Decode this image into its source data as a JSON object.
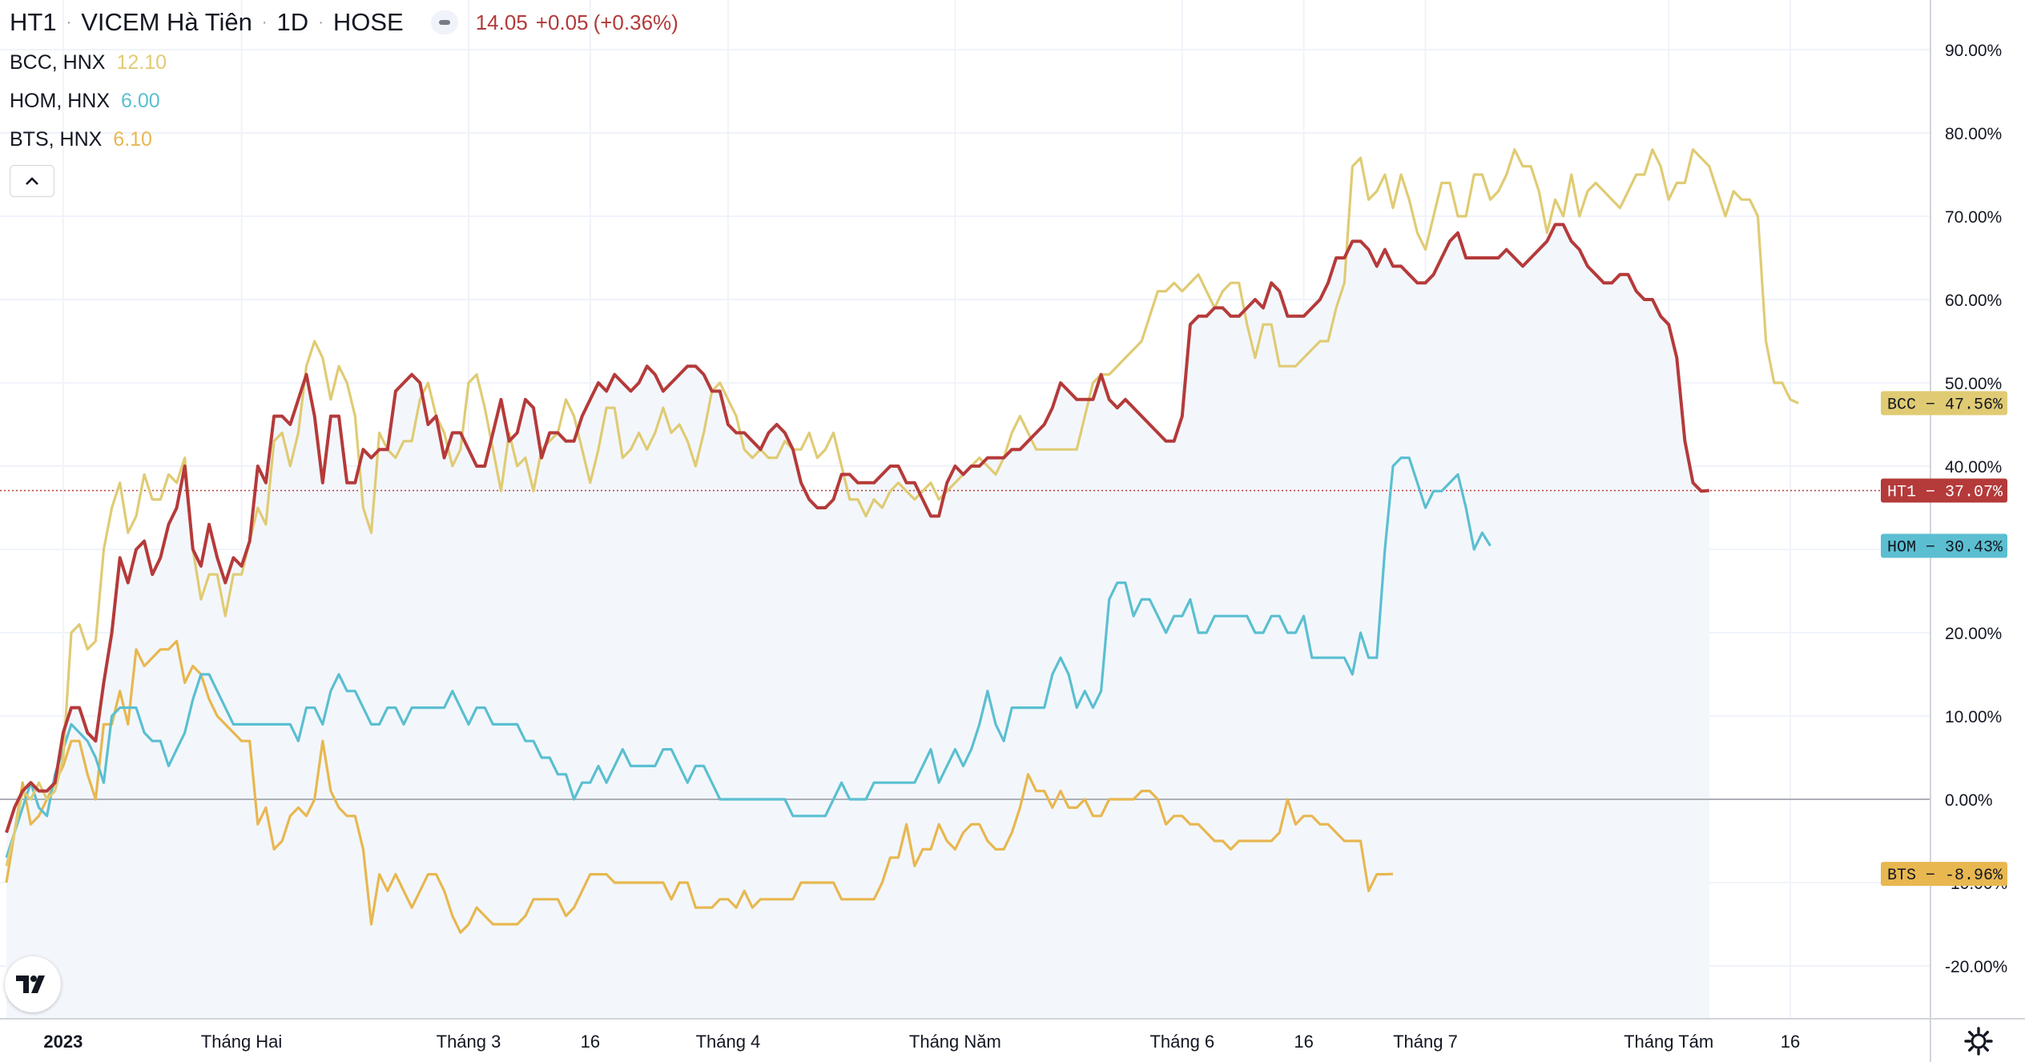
{
  "header": {
    "symbol": "HT1",
    "name": "VICEM Hà Tiên",
    "interval": "1D",
    "exchange": "HOSE",
    "price": "14.05",
    "change": "+0.05",
    "change_pct": "(+0.36%)"
  },
  "legend": [
    {
      "label": "BCC, HNX",
      "value": "12.10",
      "color": "#e0cb74"
    },
    {
      "label": "HOM, HNX",
      "value": "6.00",
      "color": "#5bbfd1"
    },
    {
      "label": "BTS, HNX",
      "value": "6.10",
      "color": "#e8b750"
    }
  ],
  "colors": {
    "HT1": "#b53a3a",
    "BCC": "#e0cb74",
    "HOM": "#5bbfd1",
    "BTS": "#e8b750",
    "area_fill": "#f3f7fc",
    "grid": "#f0f3fa"
  },
  "icons": {
    "collapse": "chevron-up-icon",
    "logo": "tradingview-logo-icon",
    "settings": "gear-icon"
  },
  "chart_data": {
    "type": "line",
    "y_unit": "%",
    "ylim": [
      -26,
      97
    ],
    "grid": true,
    "y_ticks": [
      "90.00%",
      "80.00%",
      "70.00%",
      "60.00%",
      "50.00%",
      "40.00%",
      "30.00%",
      "20.00%",
      "10.00%",
      "0.00%",
      "-10.00%",
      "-20.00%"
    ],
    "y_tick_values": [
      90,
      80,
      70,
      60,
      50,
      40,
      30,
      20,
      10,
      0,
      -10,
      -20
    ],
    "x_ticks": [
      {
        "label": "2023",
        "i": 7,
        "bold": true
      },
      {
        "label": "Tháng Hai",
        "i": 29
      },
      {
        "label": "Tháng 3",
        "i": 57
      },
      {
        "label": "16",
        "i": 72
      },
      {
        "label": "Tháng 4",
        "i": 89
      },
      {
        "label": "Tháng Năm",
        "i": 117
      },
      {
        "label": "Tháng 6",
        "i": 145
      },
      {
        "label": "16",
        "i": 160
      },
      {
        "label": "Tháng 7",
        "i": 175
      },
      {
        "label": "Tháng Tám",
        "i": 205
      },
      {
        "label": "16",
        "i": 220
      }
    ],
    "x_count": 229,
    "series": [
      {
        "name": "BCC",
        "color": "#e0cb74",
        "last_label": "47.56%",
        "values": [
          -8,
          -4,
          1,
          0,
          2,
          0,
          1,
          5,
          20,
          21,
          18,
          19,
          30,
          35,
          38,
          32,
          34,
          39,
          36,
          36,
          39,
          38,
          41,
          30,
          24,
          27,
          27,
          22,
          27,
          27,
          31,
          35,
          33,
          43,
          44,
          40,
          44,
          52,
          55,
          53,
          48,
          52,
          50,
          46,
          35,
          32,
          44,
          42,
          41,
          43,
          43,
          48,
          50,
          46,
          44,
          40,
          42,
          50,
          51,
          47,
          42,
          37,
          44,
          40,
          41,
          37,
          42,
          43,
          44,
          48,
          46,
          42,
          38,
          42,
          47,
          47,
          41,
          42,
          44,
          42,
          44,
          47,
          44,
          45,
          43,
          40,
          44,
          49,
          50,
          48,
          46,
          42,
          41,
          42,
          41,
          41,
          43,
          42,
          42,
          44,
          41,
          42,
          44,
          40,
          36,
          36,
          34,
          36,
          35,
          37,
          38,
          37,
          36,
          37,
          38,
          36,
          37,
          38,
          39,
          40,
          41,
          40,
          39,
          41,
          44,
          46,
          44,
          42,
          42,
          42,
          42,
          42,
          42,
          46,
          50,
          51,
          51,
          52,
          53,
          54,
          55,
          58,
          61,
          61,
          62,
          61,
          62,
          63,
          61,
          59,
          61,
          62,
          62,
          57,
          53,
          57,
          57,
          52,
          52,
          52,
          53,
          54,
          55,
          55,
          59,
          62,
          76,
          77,
          72,
          73,
          75,
          71,
          75,
          72,
          68,
          66,
          70,
          74,
          74,
          70,
          70,
          75,
          75,
          72,
          73,
          75,
          78,
          76,
          76,
          73,
          68,
          72,
          70,
          75,
          70,
          73,
          74,
          73,
          72,
          71,
          73,
          75,
          75,
          78,
          76,
          72,
          74,
          74,
          78,
          77,
          76,
          73,
          70,
          73,
          72,
          72,
          70,
          55,
          50,
          50,
          48,
          47.56
        ]
      },
      {
        "name": "HT1",
        "color": "#b53a3a",
        "last_label": "37.07%",
        "values": [
          -4,
          -1,
          1,
          2,
          1,
          1,
          2,
          8,
          11,
          11,
          8,
          7,
          14,
          20,
          29,
          26,
          30,
          31,
          27,
          29,
          33,
          35,
          40,
          30,
          28,
          33,
          29,
          26,
          29,
          28,
          31,
          40,
          38,
          46,
          46,
          45,
          48,
          51,
          46,
          38,
          46,
          46,
          38,
          38,
          42,
          41,
          42,
          42,
          49,
          50,
          51,
          50,
          45,
          46,
          41,
          44,
          44,
          42,
          40,
          40,
          44,
          48,
          43,
          44,
          48,
          47,
          41,
          44,
          44,
          43,
          43,
          46,
          48,
          50,
          49,
          51,
          50,
          49,
          50,
          52,
          51,
          49,
          50,
          51,
          52,
          52,
          51,
          49,
          49,
          45,
          44,
          44,
          43,
          42,
          44,
          45,
          44,
          42,
          38,
          36,
          35,
          35,
          36,
          39,
          39,
          38,
          38,
          38,
          39,
          40,
          40,
          38,
          38,
          36,
          34,
          34,
          38,
          40,
          39,
          40,
          40,
          41,
          41,
          41,
          42,
          42,
          43,
          44,
          45,
          47,
          50,
          49,
          48,
          48,
          48,
          51,
          48,
          47,
          48,
          47,
          46,
          45,
          44,
          43,
          43,
          46,
          57,
          58,
          58,
          59,
          59,
          58,
          58,
          59,
          60,
          59,
          62,
          61,
          58,
          58,
          58,
          59,
          60,
          62,
          65,
          65,
          67,
          67,
          66,
          64,
          66,
          64,
          64,
          63,
          62,
          62,
          63,
          65,
          67,
          68,
          65,
          65,
          65,
          65,
          65,
          66,
          65,
          64,
          65,
          66,
          67,
          69,
          69,
          67,
          66,
          64,
          63,
          62,
          62,
          63,
          63,
          61,
          60,
          60,
          58,
          57,
          53,
          43,
          38,
          37,
          37.07
        ]
      },
      {
        "name": "HOM",
        "color": "#5bbfd1",
        "last_label": "30.43%",
        "values": [
          -7,
          -4,
          -1,
          2,
          -1,
          -2,
          3,
          6,
          9,
          8,
          7,
          5,
          2,
          10,
          11,
          11,
          11,
          8,
          7,
          7,
          4,
          6,
          8,
          12,
          15,
          15,
          13,
          11,
          9,
          9,
          9,
          9,
          9,
          9,
          9,
          9,
          7,
          11,
          11,
          9,
          13,
          15,
          13,
          13,
          11,
          9,
          9,
          11,
          11,
          9,
          11,
          11,
          11,
          11,
          11,
          13,
          11,
          9,
          11,
          11,
          9,
          9,
          9,
          9,
          7,
          7,
          5,
          5,
          3,
          3,
          0,
          2,
          2,
          4,
          2,
          4,
          6,
          4,
          4,
          4,
          4,
          6,
          6,
          4,
          2,
          4,
          4,
          2,
          0,
          0,
          0,
          0,
          0,
          0,
          0,
          0,
          0,
          -2,
          -2,
          -2,
          -2,
          -2,
          0,
          2,
          0,
          0,
          0,
          2,
          2,
          2,
          2,
          2,
          2,
          4,
          6,
          2,
          4,
          6,
          4,
          6,
          9,
          13,
          9,
          7,
          11,
          11,
          11,
          11,
          11,
          15,
          17,
          15,
          11,
          13,
          11,
          13,
          24,
          26,
          26,
          22,
          24,
          24,
          22,
          20,
          22,
          22,
          24,
          20,
          20,
          22,
          22,
          22,
          22,
          22,
          20,
          20,
          22,
          22,
          20,
          20,
          22,
          17,
          17,
          17,
          17,
          17,
          15,
          20,
          17,
          17,
          30,
          40,
          41,
          41,
          38,
          35,
          37,
          37,
          38,
          39,
          35,
          30,
          32,
          30.43
        ]
      },
      {
        "name": "BTS",
        "color": "#e8b750",
        "last_label": "-8.96%",
        "values": [
          -10,
          -4,
          2,
          -3,
          -2,
          0,
          2,
          4,
          7,
          7,
          3,
          0,
          9,
          9,
          13,
          9,
          18,
          16,
          17,
          18,
          18,
          19,
          14,
          16,
          15,
          12,
          10,
          9,
          8,
          7,
          7,
          -3,
          -1,
          -6,
          -5,
          -2,
          -1,
          -2,
          0,
          7,
          1,
          -1,
          -2,
          -2,
          -6,
          -15,
          -9,
          -11,
          -9,
          -11,
          -13,
          -11,
          -9,
          -9,
          -11,
          -14,
          -16,
          -15,
          -13,
          -14,
          -15,
          -15,
          -15,
          -15,
          -14,
          -12,
          -12,
          -12,
          -12,
          -14,
          -13,
          -11,
          -9,
          -9,
          -9,
          -10,
          -10,
          -10,
          -10,
          -10,
          -10,
          -10,
          -12,
          -10,
          -10,
          -13,
          -13,
          -13,
          -12,
          -12,
          -13,
          -11,
          -13,
          -12,
          -12,
          -12,
          -12,
          -12,
          -10,
          -10,
          -10,
          -10,
          -10,
          -12,
          -12,
          -12,
          -12,
          -12,
          -10,
          -7,
          -7,
          -3,
          -8,
          -6,
          -6,
          -3,
          -5,
          -6,
          -4,
          -3,
          -3,
          -5,
          -6,
          -6,
          -4,
          -1,
          3,
          1,
          1,
          -1,
          1,
          -1,
          -1,
          0,
          -2,
          -2,
          0,
          0,
          0,
          0,
          1,
          1,
          0,
          -3,
          -2,
          -2,
          -3,
          -3,
          -4,
          -5,
          -5,
          -6,
          -5,
          -5,
          -5,
          -5,
          -5,
          -4,
          0,
          -3,
          -2,
          -2,
          -3,
          -3,
          -4,
          -5,
          -5,
          -5,
          -11,
          -9,
          -9,
          -8.96
        ]
      }
    ]
  }
}
